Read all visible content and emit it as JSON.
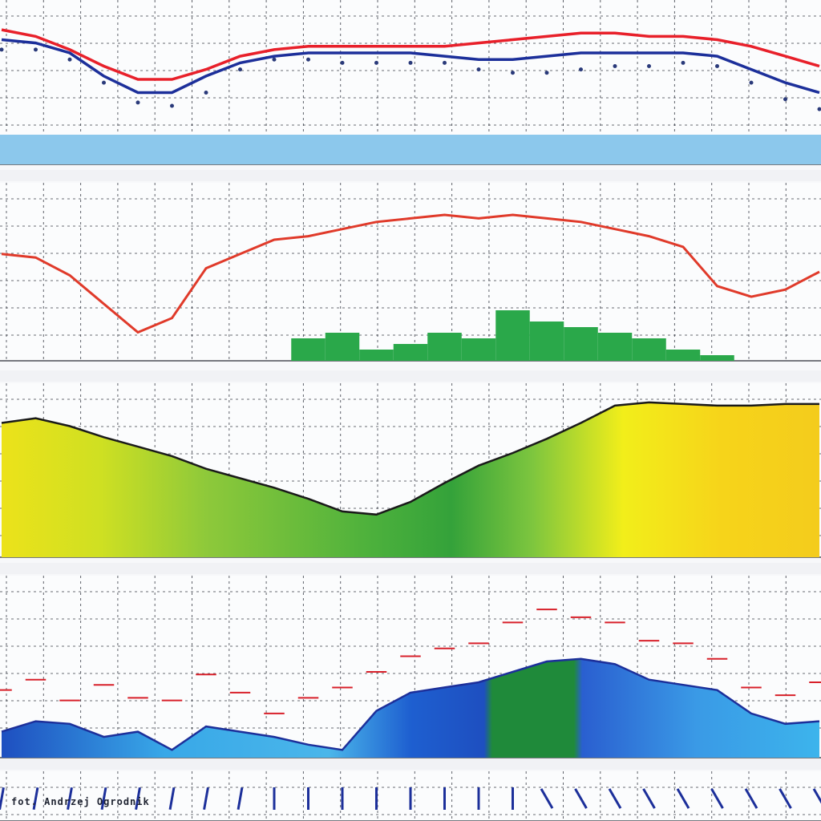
{
  "photo_credit": "fot. Andrzej Ogrodnik",
  "colors": {
    "temperature": "#e8202a",
    "dewpoint": "#1c2f9a",
    "dots": "#2a3a7a",
    "band": "#8cc8ec",
    "precip_line": "#e03a2a",
    "precip_bars": "#2aa84a",
    "grid": "#2b2f3a",
    "cloud_outline": "#1a1a1a",
    "wind_line": "#1c2f9a",
    "wind_red": "#d8202a"
  },
  "chart_data": [
    {
      "type": "line",
      "panel": "temperature",
      "title": "",
      "x": [
        0,
        4,
        8,
        12,
        16,
        20,
        24,
        28,
        32,
        36,
        40,
        44,
        48,
        52,
        56,
        60,
        64,
        68,
        72,
        76,
        80,
        84,
        88,
        92,
        96
      ],
      "series": [
        {
          "values": [
            91,
            89,
            85,
            80,
            76,
            76,
            79,
            83,
            85,
            86,
            86,
            86,
            86,
            86,
            87,
            88,
            89,
            90,
            90,
            89,
            89,
            88,
            86,
            83,
            80
          ]
        },
        {
          "values": [
            88,
            87,
            84,
            77,
            72,
            72,
            77,
            81,
            83,
            84,
            84,
            84,
            84,
            83,
            82,
            82,
            83,
            84,
            84,
            84,
            84,
            83,
            79,
            75,
            72
          ]
        },
        {
          "values": [
            85,
            85,
            82,
            75,
            69,
            68,
            72,
            79,
            82,
            82,
            81,
            81,
            81,
            81,
            79,
            78,
            78,
            79,
            80,
            80,
            81,
            80,
            75,
            70,
            67
          ]
        }
      ],
      "ylim": [
        60,
        100
      ]
    },
    {
      "type": "line",
      "panel": "precipitation",
      "x": [
        0,
        4,
        8,
        12,
        16,
        20,
        24,
        28,
        32,
        36,
        40,
        44,
        48,
        52,
        56,
        60,
        64,
        68,
        72,
        76,
        80,
        84,
        88,
        92,
        96
      ],
      "series": [
        {
          "values": [
            50,
            49,
            44,
            36,
            28,
            32,
            46,
            50,
            54,
            55,
            57,
            59,
            60,
            61,
            60,
            61,
            60,
            59,
            57,
            55,
            52,
            41,
            38,
            40,
            45
          ]
        }
      ],
      "bars": [
        0,
        0,
        0,
        0,
        0,
        0,
        0,
        0,
        0,
        4,
        5,
        2,
        3,
        5,
        4,
        9,
        7,
        6,
        5,
        4,
        2,
        1,
        0,
        0,
        0
      ],
      "ylim": [
        20,
        70
      ]
    },
    {
      "type": "area",
      "panel": "cloud",
      "x": [
        0,
        4,
        8,
        12,
        16,
        20,
        24,
        28,
        32,
        36,
        40,
        44,
        48,
        52,
        56,
        60,
        64,
        68,
        72,
        76,
        80,
        84,
        88,
        92,
        96
      ],
      "values": [
        85,
        88,
        83,
        76,
        70,
        64,
        56,
        50,
        44,
        37,
        29,
        27,
        35,
        47,
        58,
        66,
        75,
        85,
        96,
        98,
        97,
        96,
        96,
        97,
        97
      ],
      "ylim": [
        0,
        100
      ]
    },
    {
      "type": "area",
      "panel": "wind",
      "x": [
        0,
        4,
        8,
        12,
        16,
        20,
        24,
        28,
        32,
        36,
        40,
        44,
        48,
        52,
        56,
        60,
        64,
        68,
        72,
        76,
        80,
        84,
        88,
        92,
        96
      ],
      "values": [
        10,
        14,
        13,
        8,
        10,
        3,
        12,
        10,
        8,
        5,
        3,
        18,
        25,
        27,
        29,
        33,
        37,
        38,
        36,
        30,
        28,
        26,
        17,
        13,
        14
      ],
      "gusts": [
        26,
        30,
        22,
        28,
        23,
        22,
        32,
        25,
        17,
        23,
        27,
        33,
        39,
        42,
        44,
        52,
        57,
        54,
        52,
        45,
        44,
        38,
        27,
        24,
        29
      ],
      "ylim": [
        0,
        70
      ]
    }
  ]
}
